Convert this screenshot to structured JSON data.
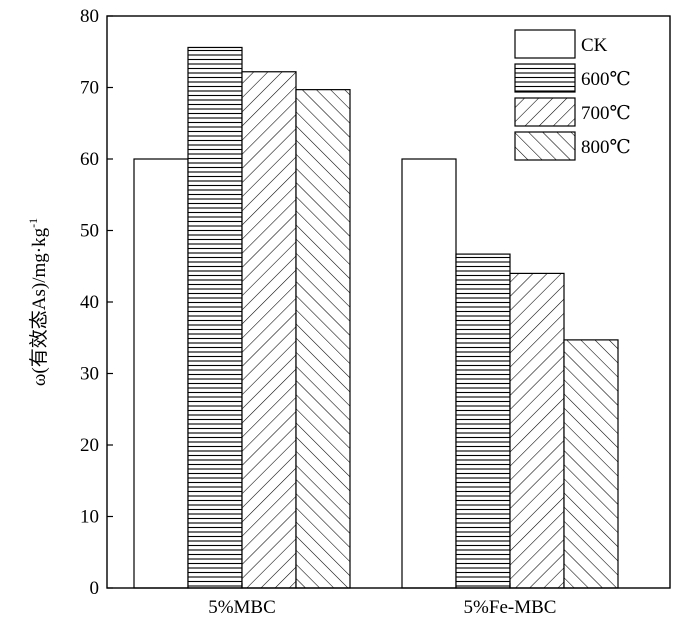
{
  "chart_data": {
    "type": "bar",
    "categories": [
      "5%MBC",
      "5%Fe-MBC"
    ],
    "series": [
      {
        "name": "CK",
        "values": [
          60.0,
          60.0
        ],
        "pattern": "none"
      },
      {
        "name": "600℃",
        "values": [
          75.6,
          46.7
        ],
        "pattern": "horizontal"
      },
      {
        "name": "700℃",
        "values": [
          72.2,
          44.0
        ],
        "pattern": "forward-diagonal"
      },
      {
        "name": "800℃",
        "values": [
          69.7,
          34.7
        ],
        "pattern": "backward-diagonal"
      }
    ],
    "title": "",
    "xlabel": "",
    "ylabel": "ω(有效态As)/mg·kg",
    "ylabel_superscript": "-1",
    "ylim": [
      0,
      80
    ],
    "yticks": [
      0,
      10,
      20,
      30,
      40,
      50,
      60,
      70,
      80
    ],
    "legend_position": "top-right",
    "grid": false,
    "bar_fill": "#ffffff",
    "bar_stroke": "#000000"
  }
}
